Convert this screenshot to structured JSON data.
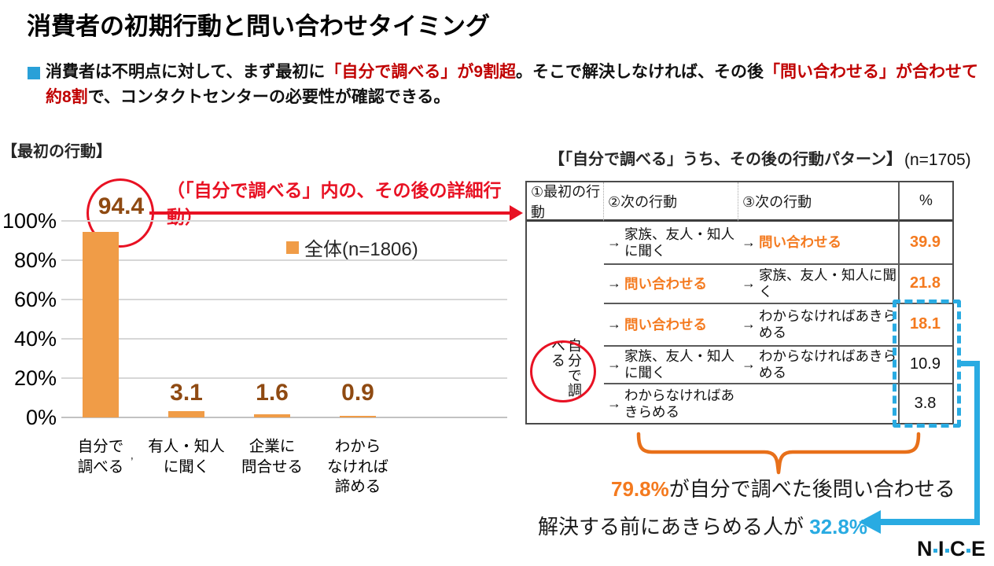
{
  "header": {
    "title": "消費者の初期行動と問い合わせタイミング",
    "lead_segments": [
      {
        "text": "消費者は不明点に対して、まず最初に",
        "emphasis": false
      },
      {
        "text": "「自分で調べる」が9割超",
        "emphasis": true
      },
      {
        "text": "。そこで解決しなければ、その後",
        "emphasis": false
      },
      {
        "text": "「問い合わせる」が合わせて約8割",
        "emphasis": true
      },
      {
        "text": "で、コンタクトセンターの必要性が確認できる。",
        "emphasis": false
      }
    ]
  },
  "chart": {
    "section_label": "【最初の行動】",
    "annotation": "（「自分で調べる」内の、その後の詳細行動）",
    "legend_label": "全体(n=1806)",
    "tick_mark": "’"
  },
  "chart_data": [
    {
      "type": "bar",
      "title": "【最初の行動】",
      "categories": [
        "自分で\n調べる",
        "有人・知人\nに聞く",
        "企業に\n問合せる",
        "わから\nなければ\n諦める"
      ],
      "values": [
        94.4,
        3.1,
        1.6,
        0.9
      ],
      "series": [
        {
          "name": "全体(n=1806)",
          "values": [
            94.4,
            3.1,
            1.6,
            0.9
          ]
        }
      ],
      "xlabel": "",
      "ylabel": "",
      "ylim": [
        0,
        100
      ],
      "yticks": [
        "0%",
        "20%",
        "40%",
        "60%",
        "80%",
        "100%"
      ],
      "grid": true,
      "legend_position": "right-inside",
      "bar_color": "#F09C47"
    },
    {
      "type": "table",
      "title": "【「自分で調べる」うち、その後の行動パターン】",
      "sample": "(n=1705)",
      "columns": [
        "①最初の行動",
        "②次の行動",
        "③次の行動",
        "%"
      ],
      "rows": [
        [
          "自分で調べる",
          "家族、友人・知人に聞く",
          "問い合わせる",
          39.9
        ],
        [
          "自分で調べる",
          "問い合わせる",
          "家族、友人・知人に聞く",
          21.8
        ],
        [
          "自分で調べる",
          "問い合わせる",
          "わからなければあきらめる",
          18.1
        ],
        [
          "自分で調べる",
          "家族、友人・知人に聞く",
          "わからなければあきらめる",
          10.9
        ],
        [
          "自分で調べる",
          "わからなければあきらめる",
          "",
          3.8
        ]
      ]
    }
  ],
  "table": {
    "title": "【「自分で調べる」うち、その後の行動パターン】",
    "sample_label": "(n=1705)",
    "headers": [
      "①最初の行動",
      "②次の行動",
      "③次の行動",
      "%"
    ],
    "first_action": "自分で調べる",
    "arrow_glyph": "→",
    "rows": [
      {
        "step2": "家族、友人・知人に聞く",
        "step2_orange": false,
        "step3": "問い合わせる",
        "step3_orange": true,
        "pct": "39.9",
        "pct_orange": true
      },
      {
        "step2": "問い合わせる",
        "step2_orange": true,
        "step3": "家族、友人・知人に聞く",
        "step3_orange": false,
        "pct": "21.8",
        "pct_orange": true
      },
      {
        "step2": "問い合わせる",
        "step2_orange": true,
        "step3": "わからなければあきらめる",
        "step3_orange": false,
        "pct": "18.1",
        "pct_orange": true
      },
      {
        "step2": "家族、友人・知人に聞く",
        "step2_orange": false,
        "step3": "わからなければあきらめる",
        "step3_orange": false,
        "pct": "10.9",
        "pct_orange": false
      },
      {
        "step2": "わからなければあきらめる",
        "step2_orange": false,
        "step3": "",
        "step3_orange": false,
        "pct": "3.8",
        "pct_orange": false
      }
    ]
  },
  "callouts": {
    "contact_pct": "79.8%",
    "contact_text": "が自分で調べた後問い合わせる",
    "giveup_text": "解決する前にあきらめる人が ",
    "giveup_pct": "32.8%"
  },
  "logo": {
    "text": "NICE"
  },
  "colors": {
    "bar_orange": "#F09C47",
    "text_orange": "#F47A1F",
    "value_brown": "#8F4A12",
    "bright_red": "#E81123",
    "dark_red": "#C00000",
    "cyan_blue": "#29ABE2",
    "bullet_blue": "#29A0D8",
    "gridline_gray": "#D7D7D7"
  }
}
